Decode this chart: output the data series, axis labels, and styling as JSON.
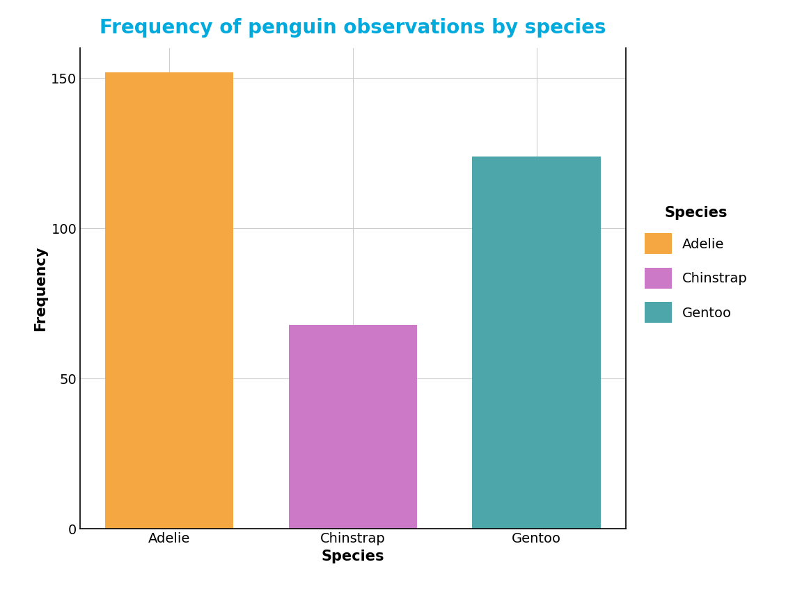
{
  "title": "Frequency of penguin observations by species",
  "title_color": "#00AADD",
  "title_fontsize": 20,
  "categories": [
    "Adelie",
    "Chinstrap",
    "Gentoo"
  ],
  "values": [
    152,
    68,
    124
  ],
  "bar_colors": [
    "#F5A742",
    "#CC79C7",
    "#4DA7AA"
  ],
  "xlabel": "Species",
  "ylabel": "Frequency",
  "xlabel_fontsize": 15,
  "ylabel_fontsize": 15,
  "tick_fontsize": 14,
  "ylim": [
    0,
    160
  ],
  "yticks": [
    0,
    50,
    100,
    150
  ],
  "background_color": "#FFFFFF",
  "panel_background": "#FFFFFF",
  "grid_color": "#CCCCCC",
  "legend_title": "Species",
  "legend_labels": [
    "Adelie",
    "Chinstrap",
    "Gentoo"
  ],
  "legend_colors": [
    "#F5A742",
    "#CC79C7",
    "#4DA7AA"
  ],
  "bar_width": 0.7
}
